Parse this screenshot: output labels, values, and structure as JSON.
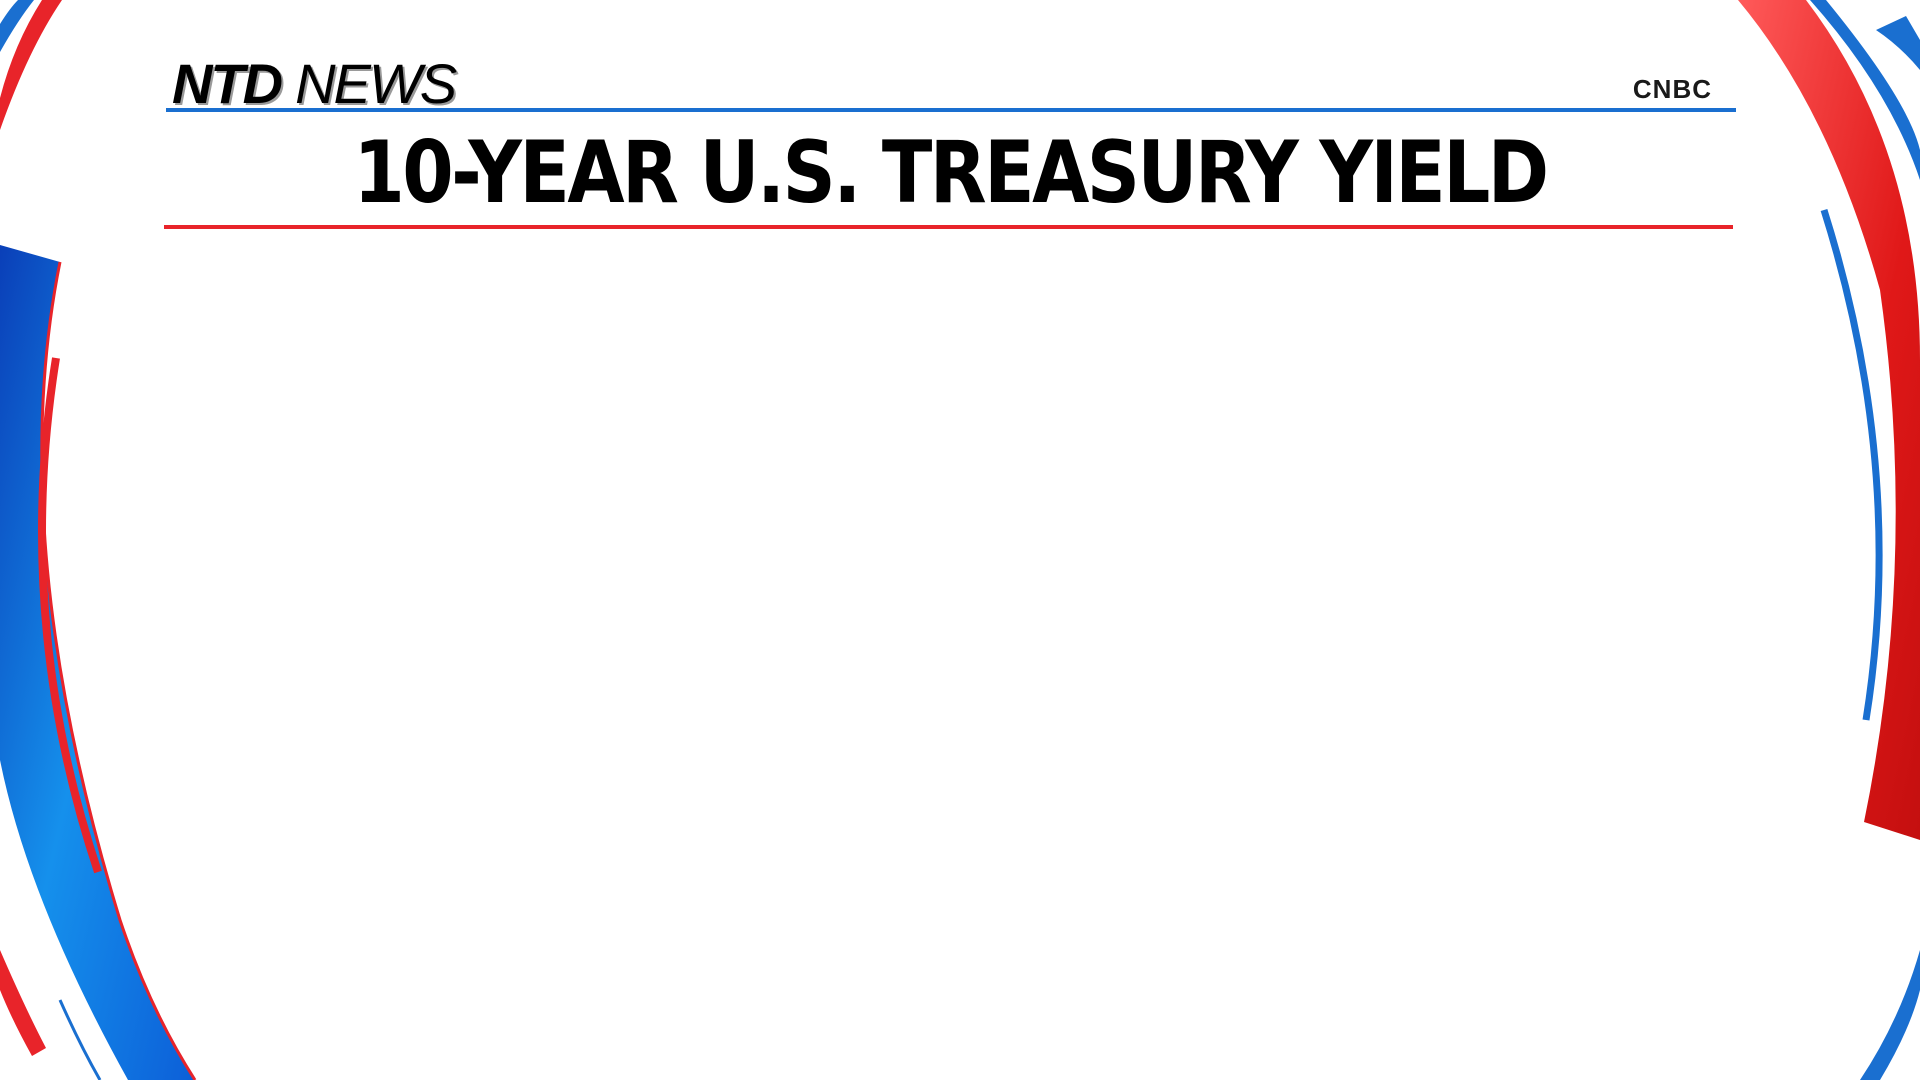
{
  "branding": {
    "logo_primary": "NTD",
    "logo_secondary": "NEWS",
    "source": "CNBC"
  },
  "headline": {
    "title": "10-YEAR U.S. TREASURY YIELD"
  },
  "colors": {
    "accent_blue": "#1a6fd0",
    "accent_red": "#e8242a",
    "background": "#ffffff",
    "text": "#000000"
  }
}
